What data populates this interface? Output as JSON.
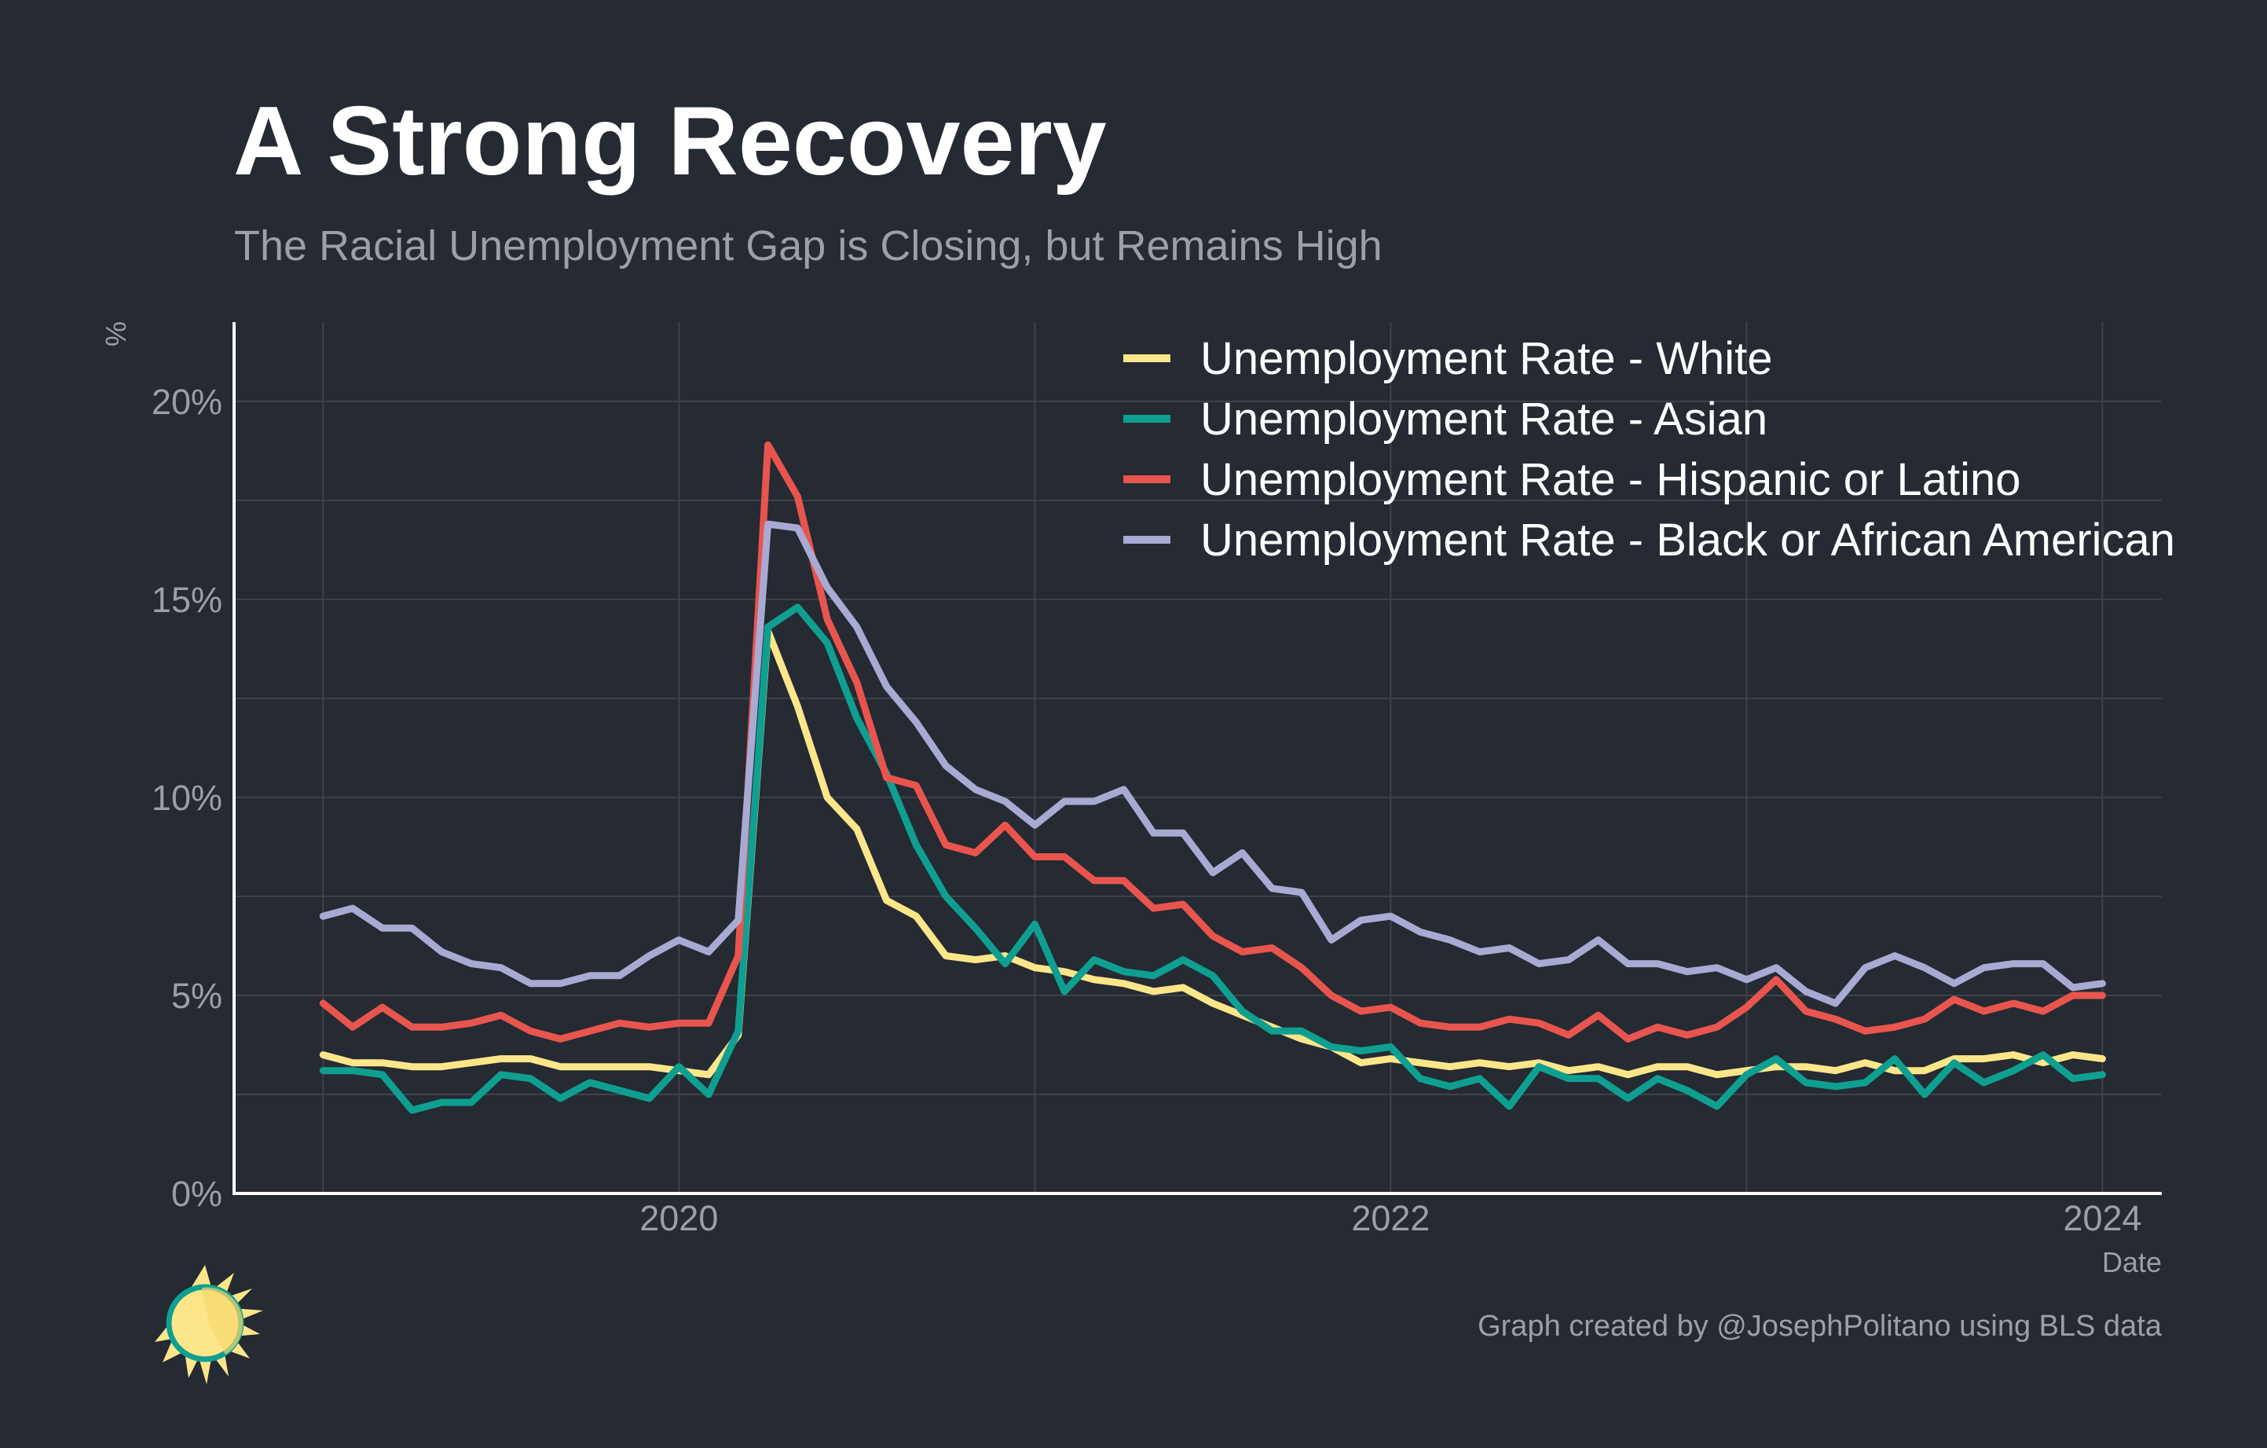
{
  "title": "A Strong Recovery",
  "subtitle": "The Racial Unemployment Gap is Closing, but Remains High",
  "caption": "Graph created by @JosephPolitano using BLS data",
  "logo": {
    "icon": "sun-icon"
  },
  "colors": {
    "background": "#252a33",
    "grid": "#3d424b",
    "axis": "#ffffff",
    "text_muted": "#9a9fa8"
  },
  "chart_data": {
    "type": "line",
    "title": "A Strong Recovery",
    "subtitle": "The Racial Unemployment Gap is Closing, but Remains High",
    "xlabel": "Date",
    "ylabel": "%",
    "x_start": "2019-01",
    "x_end": "2023-12",
    "x_frequency": "monthly",
    "xlim": [
      "2018-10",
      "2024-03"
    ],
    "ylim": [
      0,
      22
    ],
    "x_ticks": [
      {
        "value": "2020-01",
        "label": "2020"
      },
      {
        "value": "2022-01",
        "label": "2022"
      },
      {
        "value": "2024-01",
        "label": "2024"
      }
    ],
    "y_ticks": [
      {
        "value": 0,
        "label": "0%"
      },
      {
        "value": 5,
        "label": "5%"
      },
      {
        "value": 10,
        "label": "10%"
      },
      {
        "value": 15,
        "label": "15%"
      },
      {
        "value": 20,
        "label": "20%"
      }
    ],
    "grid": true,
    "legend_position": "top-right",
    "series": [
      {
        "name": "Unemployment Rate - White",
        "color": "#fde68a",
        "values": [
          3.5,
          3.3,
          3.3,
          3.2,
          3.2,
          3.3,
          3.4,
          3.4,
          3.2,
          3.2,
          3.2,
          3.2,
          3.1,
          3.0,
          4.0,
          14.2,
          12.3,
          10.0,
          9.2,
          7.4,
          7.0,
          6.0,
          5.9,
          6.0,
          5.7,
          5.6,
          5.4,
          5.3,
          5.1,
          5.2,
          4.8,
          4.5,
          4.2,
          3.9,
          3.7,
          3.3,
          3.4,
          3.3,
          3.2,
          3.3,
          3.2,
          3.3,
          3.1,
          3.2,
          3.0,
          3.2,
          3.2,
          3.0,
          3.1,
          3.2,
          3.2,
          3.1,
          3.3,
          3.1,
          3.1,
          3.4,
          3.4,
          3.5,
          3.3,
          3.5,
          3.4
        ]
      },
      {
        "name": "Unemployment Rate - Asian",
        "color": "#0f9f91",
        "values": [
          3.1,
          3.1,
          3.0,
          2.1,
          2.3,
          2.3,
          3.0,
          2.9,
          2.4,
          2.8,
          2.6,
          2.4,
          3.2,
          2.5,
          4.1,
          14.3,
          14.8,
          13.9,
          12.0,
          10.6,
          8.8,
          7.5,
          6.7,
          5.8,
          6.8,
          5.1,
          5.9,
          5.6,
          5.5,
          5.9,
          5.5,
          4.6,
          4.1,
          4.1,
          3.7,
          3.6,
          3.7,
          2.9,
          2.7,
          2.9,
          2.2,
          3.2,
          2.9,
          2.9,
          2.4,
          2.9,
          2.6,
          2.2,
          3.0,
          3.4,
          2.8,
          2.7,
          2.8,
          3.4,
          2.5,
          3.3,
          2.8,
          3.1,
          3.5,
          2.9,
          3.0
        ]
      },
      {
        "name": "Unemployment Rate - Hispanic or Latino",
        "color": "#e8554e",
        "values": [
          4.8,
          4.2,
          4.7,
          4.2,
          4.2,
          4.3,
          4.5,
          4.1,
          3.9,
          4.1,
          4.3,
          4.2,
          4.3,
          4.3,
          6.0,
          18.9,
          17.6,
          14.5,
          12.9,
          10.5,
          10.3,
          8.8,
          8.6,
          9.3,
          8.5,
          8.5,
          7.9,
          7.9,
          7.2,
          7.3,
          6.5,
          6.1,
          6.2,
          5.7,
          5.0,
          4.6,
          4.7,
          4.3,
          4.2,
          4.2,
          4.4,
          4.3,
          4.0,
          4.5,
          3.9,
          4.2,
          4.0,
          4.2,
          4.7,
          5.4,
          4.6,
          4.4,
          4.1,
          4.2,
          4.4,
          4.9,
          4.6,
          4.8,
          4.6,
          5.0,
          5.0
        ]
      },
      {
        "name": "Unemployment Rate - Black or African American",
        "color": "#a9aad3",
        "values": [
          7.0,
          7.2,
          6.7,
          6.7,
          6.1,
          5.8,
          5.7,
          5.3,
          5.3,
          5.5,
          5.5,
          6.0,
          6.4,
          6.1,
          6.9,
          16.9,
          16.8,
          15.3,
          14.3,
          12.8,
          11.9,
          10.8,
          10.2,
          9.9,
          9.3,
          9.9,
          9.9,
          10.2,
          9.1,
          9.1,
          8.1,
          8.6,
          7.7,
          7.6,
          6.4,
          6.9,
          7.0,
          6.6,
          6.4,
          6.1,
          6.2,
          5.8,
          5.9,
          6.4,
          5.8,
          5.8,
          5.6,
          5.7,
          5.4,
          5.7,
          5.1,
          4.8,
          5.7,
          6.0,
          5.7,
          5.3,
          5.7,
          5.8,
          5.8,
          5.2,
          5.3
        ]
      }
    ]
  }
}
